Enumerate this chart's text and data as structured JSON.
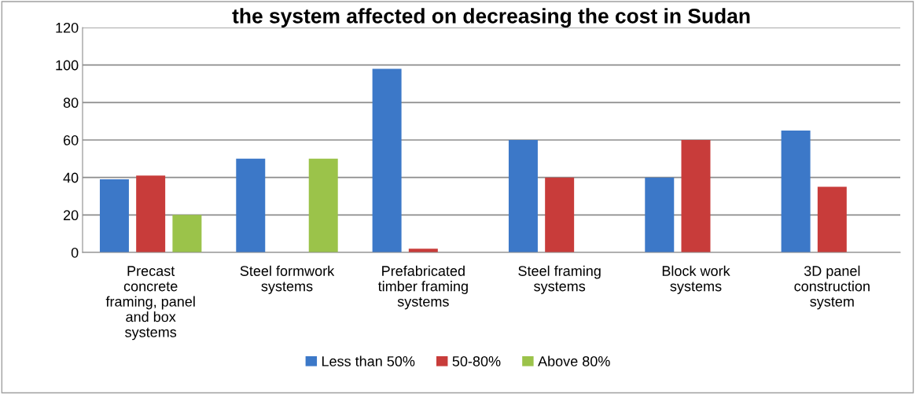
{
  "chart_data": {
    "type": "bar",
    "title": "the system affected on decreasing the cost in Sudan",
    "categories": [
      "Precast\nconcrete\nframing, panel\nand box\nsystems",
      "Steel formwork\nsystems",
      "Prefabricated\ntimber framing\nsystems",
      "Steel framing\nsystems",
      "Block work\nsystems",
      "3D panel\nconstruction\nsystem"
    ],
    "series": [
      {
        "name": "Less than 50%",
        "color": "#3c78c8",
        "values": [
          39,
          50,
          98,
          60,
          40,
          65
        ]
      },
      {
        "name": "50-80%",
        "color": "#c83c3a",
        "values": [
          41,
          0,
          2,
          40,
          60,
          35
        ]
      },
      {
        "name": "Above 80%",
        "color": "#9bc34a",
        "values": [
          20,
          50,
          0,
          0,
          0,
          0
        ]
      }
    ],
    "ylim": [
      0,
      120
    ],
    "yticks": [
      0,
      20,
      40,
      60,
      80,
      100,
      120
    ],
    "grid": "y",
    "legend": "bottom"
  }
}
